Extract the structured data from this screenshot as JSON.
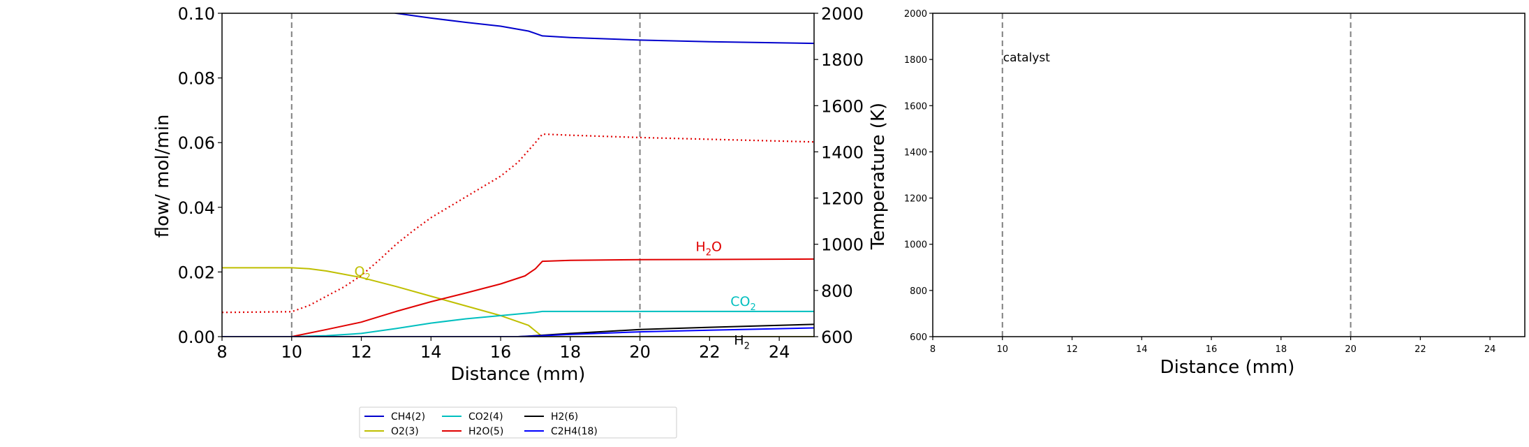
{
  "chart_data": [
    {
      "type": "line",
      "title": "",
      "xlabel": "Distance (mm)",
      "ylabel": "flow/ mol/min",
      "y2label": "Temperature (K)",
      "xlim": [
        8,
        25
      ],
      "ylim": [
        0,
        0.1
      ],
      "y2lim": [
        600,
        2000
      ],
      "xticks": [
        "8",
        "10",
        "12",
        "14",
        "16",
        "18",
        "20",
        "22",
        "24"
      ],
      "yticks": [
        "0.00",
        "0.02",
        "0.04",
        "0.06",
        "0.08",
        "0.10"
      ],
      "y2ticks": [
        "600",
        "800",
        "1000",
        "1200",
        "1400",
        "1600",
        "1800",
        "2000"
      ],
      "vlines": [
        10,
        20
      ],
      "grid": false,
      "series": [
        {
          "name": "CH4(2)",
          "color": "#0000cc",
          "x": [
            8,
            13,
            14,
            15,
            16,
            16.8,
            17.2,
            18,
            20,
            22,
            25
          ],
          "y": [
            0.11,
            0.1,
            0.0985,
            0.0972,
            0.096,
            0.0945,
            0.093,
            0.0925,
            0.0917,
            0.0912,
            0.0907
          ]
        },
        {
          "name": "O2(3)",
          "color": "#bfbf00",
          "x": [
            8,
            10,
            10.5,
            11,
            12,
            13,
            14,
            15,
            16,
            16.8,
            17.2,
            18,
            25
          ],
          "y": [
            0.0213,
            0.0213,
            0.021,
            0.0203,
            0.0183,
            0.0155,
            0.0125,
            0.0095,
            0.0065,
            0.0035,
            0.0,
            0.0,
            0.0
          ]
        },
        {
          "name": "CO2(4)",
          "color": "#00bfbf",
          "x": [
            8,
            10,
            11,
            12,
            13,
            14,
            15,
            16,
            17,
            17.2,
            18,
            25
          ],
          "y": [
            0,
            0,
            0.0003,
            0.001,
            0.0025,
            0.0042,
            0.0055,
            0.0065,
            0.0075,
            0.0078,
            0.0078,
            0.0078
          ]
        },
        {
          "name": "H2O(5)",
          "color": "#e00000",
          "x": [
            8,
            10,
            11,
            12,
            13,
            14,
            15,
            16,
            16.7,
            17,
            17.2,
            18,
            20,
            25
          ],
          "y": [
            0,
            0,
            0.0022,
            0.0045,
            0.0078,
            0.0108,
            0.0135,
            0.0163,
            0.0188,
            0.021,
            0.0233,
            0.0236,
            0.0238,
            0.024
          ]
        },
        {
          "name": "H2(6)",
          "color": "#000000",
          "x": [
            8,
            16.5,
            17,
            18,
            19,
            20,
            22,
            25
          ],
          "y": [
            0,
            0,
            0.0003,
            0.001,
            0.0016,
            0.0022,
            0.0029,
            0.0038
          ]
        },
        {
          "name": "C2H4(18)",
          "color": "#0000ff",
          "x": [
            8,
            16.5,
            17,
            18,
            20,
            22,
            25
          ],
          "y": [
            0,
            0,
            0.0002,
            0.0007,
            0.0015,
            0.002,
            0.0027
          ]
        },
        {
          "name": "",
          "color": "#e00000",
          "dashed": true,
          "axis": "right",
          "x": [
            8,
            10,
            10.5,
            11,
            11.5,
            12,
            12.5,
            13,
            13.5,
            14,
            15,
            16,
            16.5,
            17,
            17.2,
            18,
            20,
            25
          ],
          "y": [
            705,
            708,
            735,
            775,
            815,
            865,
            930,
            1000,
            1060,
            1115,
            1205,
            1295,
            1355,
            1440,
            1477,
            1472,
            1462,
            1443
          ]
        }
      ],
      "annotations": [
        {
          "base": "H",
          "sub": "2",
          "tail": "O",
          "x": 21.6,
          "y": 0.0265,
          "color": "#e00000"
        },
        {
          "base": "CO",
          "sub": "2",
          "tail": "",
          "x": 22.6,
          "y": 0.0095,
          "color": "#00bfbf"
        },
        {
          "base": "O",
          "sub": "2",
          "tail": "",
          "x": 11.8,
          "y": 0.0188,
          "color": "#bfbf00"
        },
        {
          "base": "H",
          "sub": "2",
          "tail": "",
          "x": 22.7,
          "y": -0.0025,
          "color": "#000000"
        }
      ],
      "legend": {
        "placement": "bottom",
        "entries": [
          {
            "label": "CH4(2)",
            "color": "#0000cc"
          },
          {
            "label": "O2(3)",
            "color": "#bfbf00"
          },
          {
            "label": "CO2(4)",
            "color": "#00bfbf"
          },
          {
            "label": "H2O(5)",
            "color": "#e00000"
          },
          {
            "label": "H2(6)",
            "color": "#000000"
          },
          {
            "label": "C2H4(18)",
            "color": "#0000ff"
          }
        ]
      }
    },
    {
      "type": "line",
      "title": "",
      "xlabel": "Distance (mm)",
      "ylabel": "",
      "xlim": [
        8,
        25
      ],
      "ylim": [
        600,
        2000
      ],
      "xticks": [
        "8",
        "10",
        "12",
        "14",
        "16",
        "18",
        "20",
        "22",
        "24"
      ],
      "yticks": [
        "600",
        "800",
        "1000",
        "1200",
        "1400",
        "1600",
        "1800",
        "2000"
      ],
      "vlines": [
        10,
        20
      ],
      "grid": false,
      "series": [],
      "annotations": [
        {
          "text": "catalyst",
          "x": 10,
          "y": 1810,
          "color": "#000000"
        }
      ]
    }
  ]
}
